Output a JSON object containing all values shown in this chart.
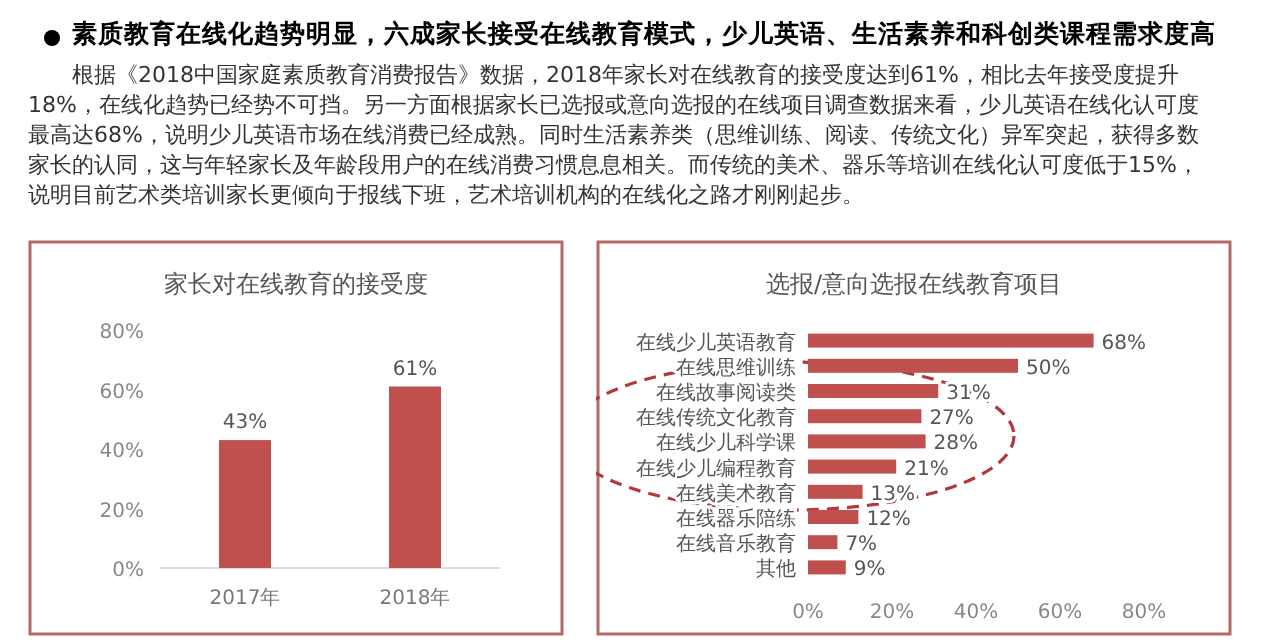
{
  "chart_data": [
    {
      "type": "other",
      "title": "素质教育在线化趋势明显，六成家长接受在线教育模式，少儿英语、生活素养和科创类课程需求度高",
      "annotations": [
        "根据《2018中国家庭素质教育消费报告》数据，2018年家长对在线教育的接受度达到61%，相比去年接受度提升18%，在线化趋势已经势不可挡。另一方面根据家长已选报或意向选报的在线项目调查数据来看，少儿英语在线化认可度最高达68%，说明少儿英语市场在线消费已经成熟。同时生活素养类（思维训练、阅读、传统文化）异军突起，获得多数家长的认同，这与年轻家长及年龄段用户的在线消费习惯息息相关。而传统的美术、器乐等培训在线化认可度低于15%，说明目前艺术类培训家长更倾向于报线下班，艺术培训机构的在线化之路才刚刚起步。"
      ]
    },
    {
      "type": "bar",
      "title": "家长对在线教育的接受度",
      "categories": [
        "2017年",
        "2018年"
      ],
      "values": [
        43,
        61
      ],
      "value_labels": [
        "43%",
        "61%"
      ],
      "color": "#c0504d",
      "ylim": [
        0,
        80
      ],
      "yticks": [
        {
          "value": 0,
          "label": "0%"
        },
        {
          "value": 20,
          "label": "20%"
        },
        {
          "value": 40,
          "label": "40%"
        },
        {
          "value": 60,
          "label": "60%"
        },
        {
          "value": 80,
          "label": "80%"
        }
      ]
    },
    {
      "type": "bar",
      "orientation": "horizontal",
      "title": "选报/意向选报在线教育项目",
      "categories": [
        "在线少儿英语教育",
        "在线思维训练",
        "在线故事阅读类",
        "在线传统文化教育",
        "在线少儿科学课",
        "在线少儿编程教育",
        "在线美术教育",
        "在线器乐陪练",
        "在线音乐教育",
        "其他"
      ],
      "values": [
        68,
        50,
        31,
        27,
        28,
        21,
        13,
        12,
        7,
        9
      ],
      "value_labels": [
        "68%",
        "50%",
        "31%",
        "27%",
        "28%",
        "21%",
        "13%",
        "12%",
        "7%",
        "9%"
      ],
      "color": "#c0504d",
      "xlim": [
        0,
        80
      ],
      "xticks": [
        {
          "value": 0,
          "label": "0%"
        },
        {
          "value": 20,
          "label": "20%"
        },
        {
          "value": 40,
          "label": "40%"
        },
        {
          "value": 60,
          "label": "60%"
        },
        {
          "value": 80,
          "label": "80%"
        }
      ]
    }
  ]
}
